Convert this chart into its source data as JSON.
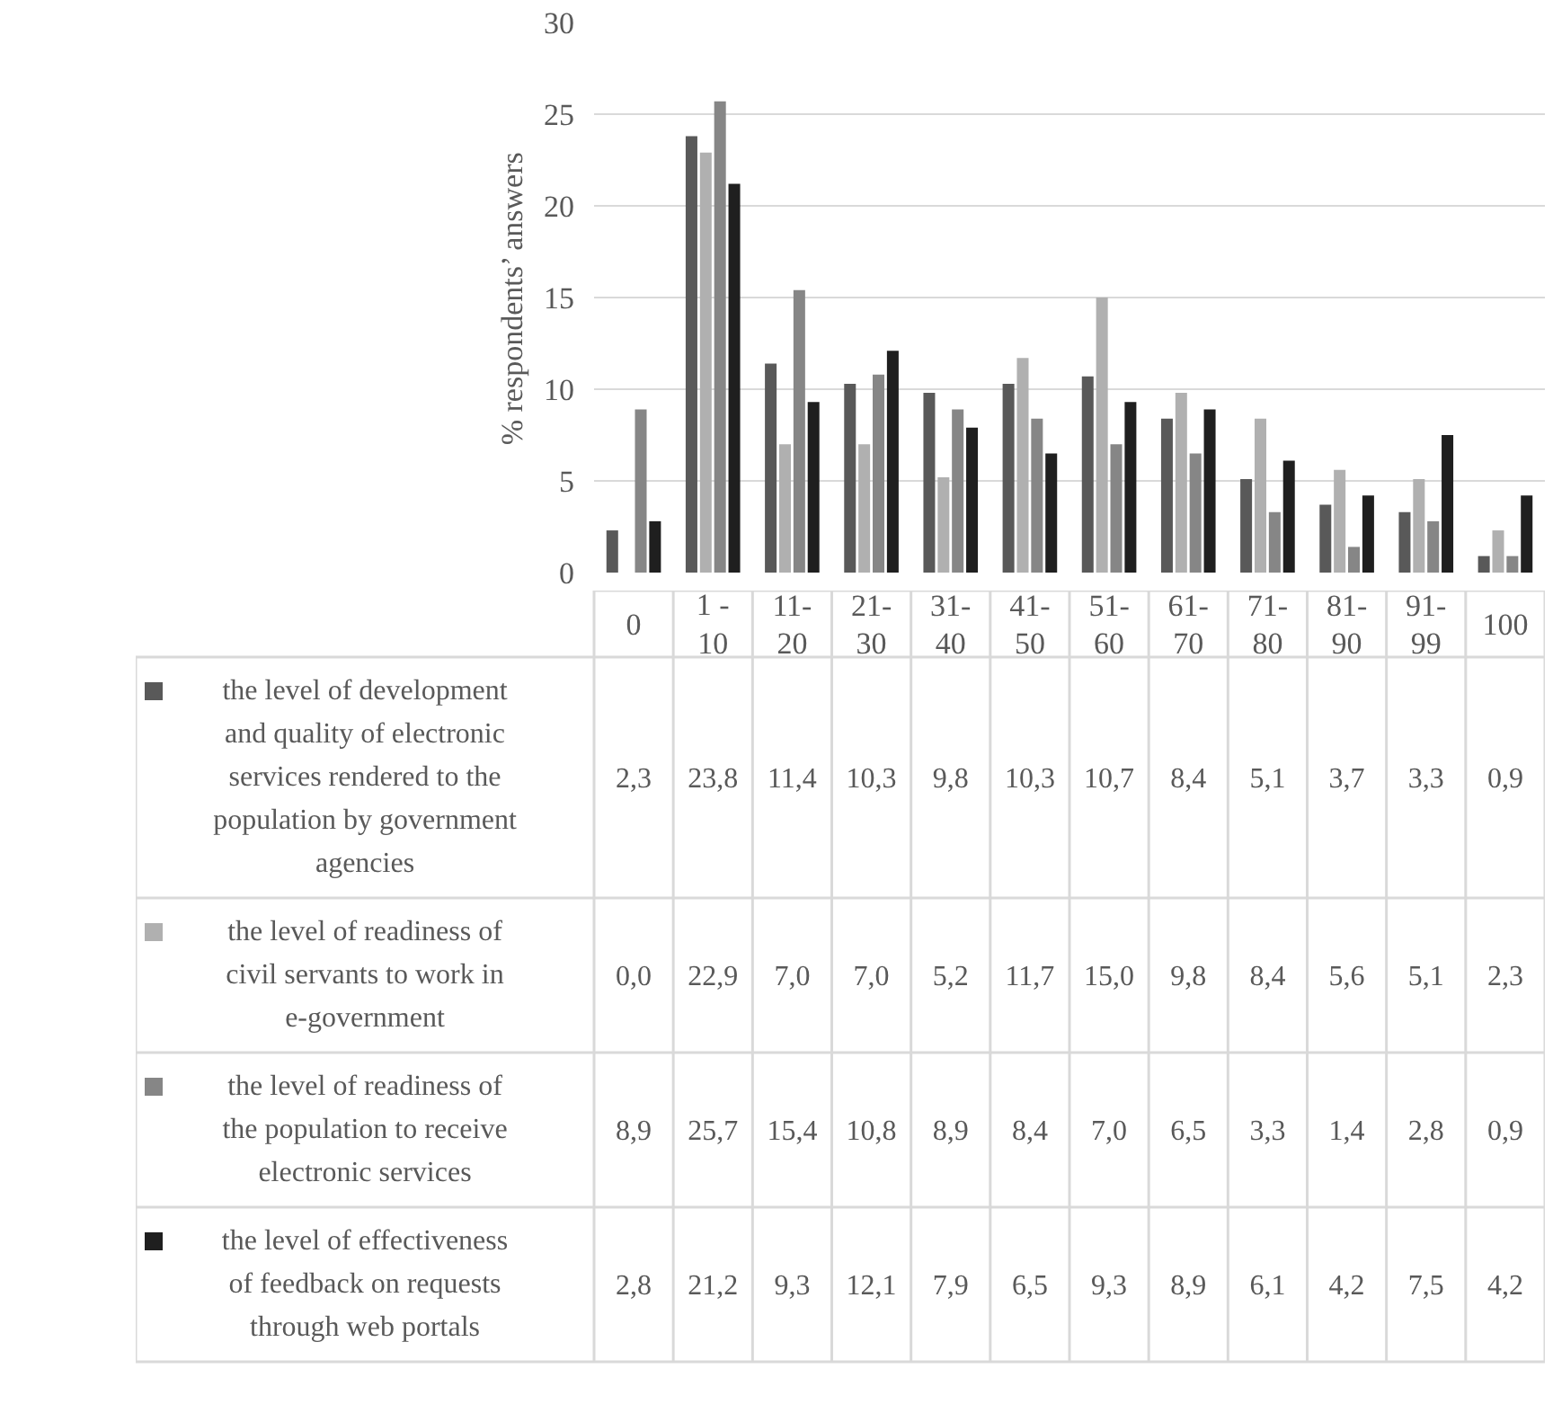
{
  "chart_data": {
    "type": "bar",
    "ylabel": "% respondents’ answers",
    "categories": [
      "0",
      "1 - 10",
      "11-20",
      "21-30",
      "31-40",
      "41-50",
      "51-60",
      "61-70",
      "71-80",
      "81-90",
      "91-99",
      "100"
    ],
    "series": [
      {
        "name": "the level of development and quality of electronic services rendered to the population by government agencies",
        "color": "#595959",
        "values": [
          2.3,
          23.8,
          11.4,
          10.3,
          9.8,
          10.3,
          10.7,
          8.4,
          5.1,
          3.7,
          3.3,
          0.9
        ],
        "value_labels": [
          "2,3",
          "23,8",
          "11,4",
          "10,3",
          "9,8",
          "10,3",
          "10,7",
          "8,4",
          "5,1",
          "3,7",
          "3,3",
          "0,9"
        ]
      },
      {
        "name": "the level of readiness of civil servants to work in e-government",
        "color": "#b0b0b0",
        "values": [
          0.0,
          22.9,
          7.0,
          7.0,
          5.2,
          11.7,
          15.0,
          9.8,
          8.4,
          5.6,
          5.1,
          2.3
        ],
        "value_labels": [
          "0,0",
          "22,9",
          "7,0",
          "7,0",
          "5,2",
          "11,7",
          "15,0",
          "9,8",
          "8,4",
          "5,6",
          "5,1",
          "2,3"
        ]
      },
      {
        "name": "the level of readiness of the population to receive electronic services",
        "color": "#868686",
        "values": [
          8.9,
          25.7,
          15.4,
          10.8,
          8.9,
          8.4,
          7.0,
          6.5,
          3.3,
          1.4,
          2.8,
          0.9
        ],
        "value_labels": [
          "8,9",
          "25,7",
          "15,4",
          "10,8",
          "8,9",
          "8,4",
          "7,0",
          "6,5",
          "3,3",
          "1,4",
          "2,8",
          "0,9"
        ]
      },
      {
        "name": "the level of effectiveness of feedback on requests through web portals",
        "color": "#1f1f1f",
        "values": [
          2.8,
          21.2,
          9.3,
          12.1,
          7.9,
          6.5,
          9.3,
          8.9,
          6.1,
          4.2,
          7.5,
          4.2
        ],
        "value_labels": [
          "2,8",
          "21,2",
          "9,3",
          "12,1",
          "7,9",
          "6,5",
          "9,3",
          "8,9",
          "6,1",
          "4,2",
          "7,5",
          "4,2"
        ]
      }
    ],
    "ylim": [
      0,
      30
    ],
    "yticks": [
      0,
      5,
      10,
      15,
      20,
      25,
      30
    ],
    "grid": "y",
    "legend": "bottom"
  }
}
